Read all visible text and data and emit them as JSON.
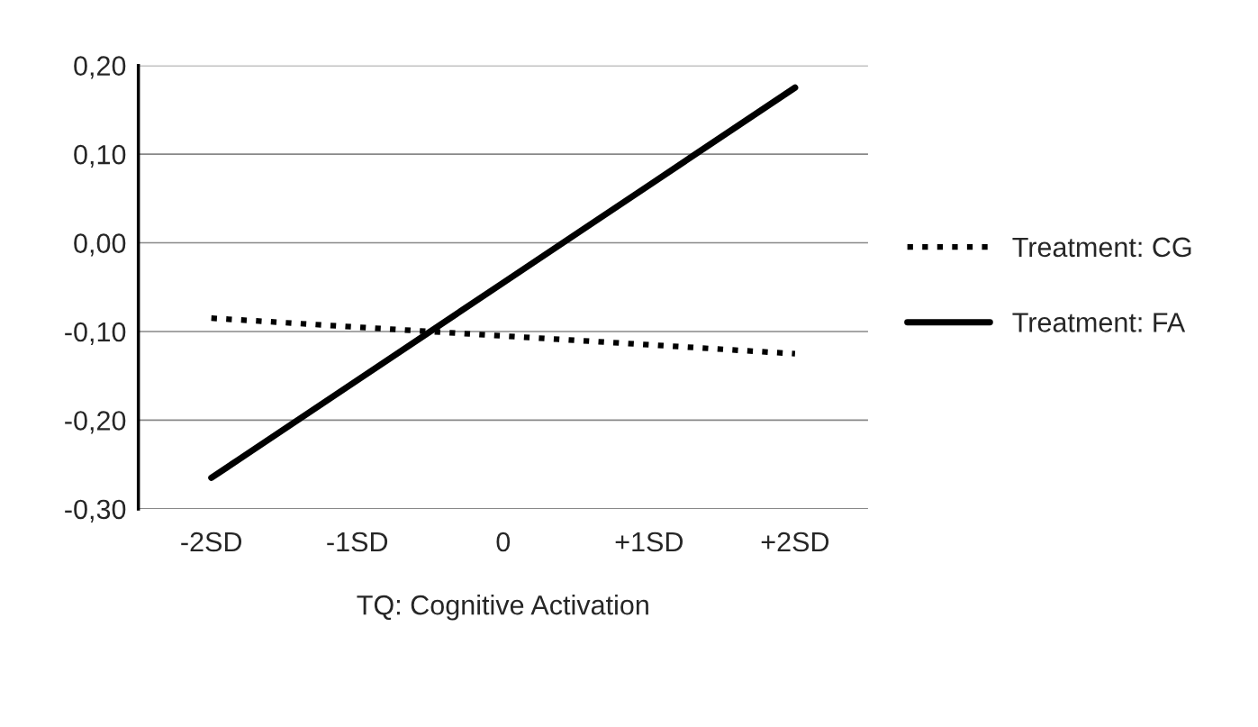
{
  "chart_data": {
    "type": "line",
    "xlabel": "TQ: Cognitive Activation",
    "categories": [
      "-2SD",
      "-1SD",
      "0",
      "+1SD",
      "+2SD"
    ],
    "series": [
      {
        "name": "Treatment: CG",
        "color": "#000000",
        "line_style": "dotted",
        "values": [
          -0.085,
          -0.095,
          -0.105,
          -0.115,
          -0.125
        ]
      },
      {
        "name": "Treatment: FA",
        "color": "#000000",
        "line_style": "solid",
        "values": [
          -0.265,
          -0.155,
          -0.045,
          0.065,
          0.175
        ]
      }
    ],
    "ylim": [
      -0.3,
      0.2
    ],
    "yticks": [
      {
        "value": -0.3,
        "label": "-0,30"
      },
      {
        "value": -0.2,
        "label": "-0,20"
      },
      {
        "value": -0.1,
        "label": "-0,10"
      },
      {
        "value": 0.0,
        "label": "0,00"
      },
      {
        "value": 0.1,
        "label": "0,10"
      },
      {
        "value": 0.2,
        "label": "0,20"
      }
    ],
    "grid": "y",
    "legend": "right",
    "marker": "none"
  }
}
